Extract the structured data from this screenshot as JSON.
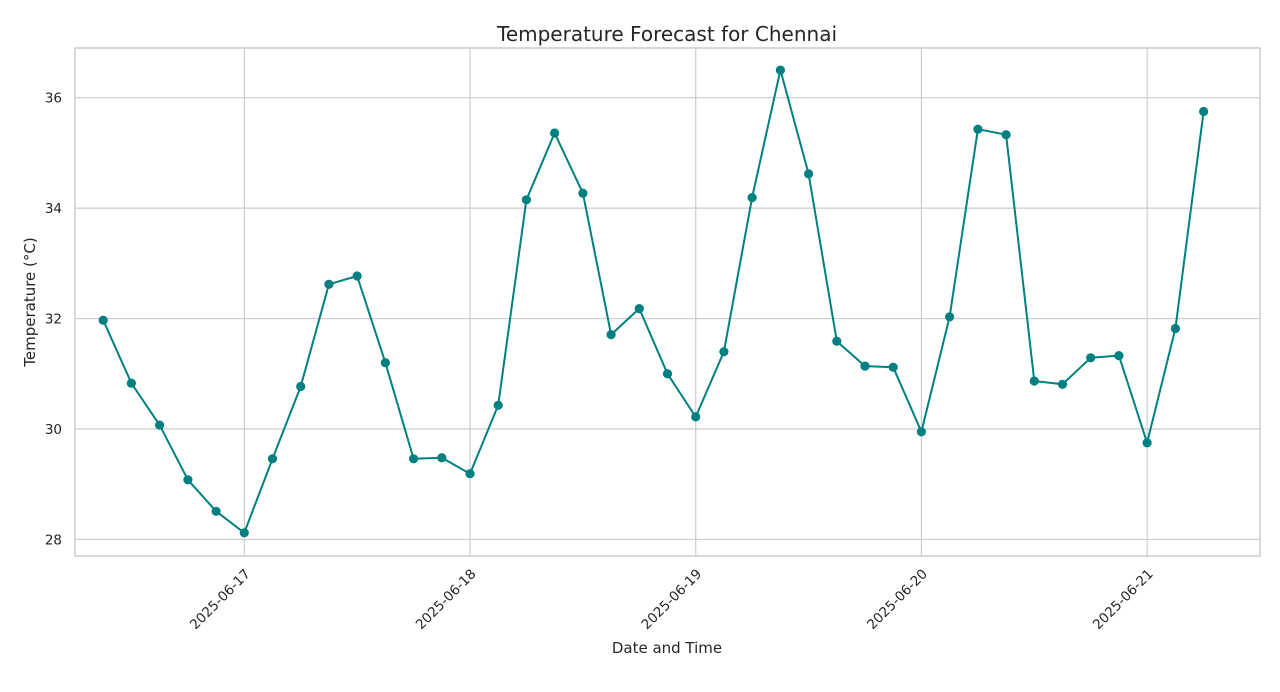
{
  "chart_data": {
    "type": "line",
    "title": "Temperature Forecast for Chennai",
    "xlabel": "Date and Time",
    "ylabel": "Temperature (°C)",
    "x_tick_labels": [
      "2025-06-17",
      "2025-06-18",
      "2025-06-19",
      "2025-06-20",
      "2025-06-21"
    ],
    "y_ticks": [
      28,
      30,
      32,
      34,
      36
    ],
    "xlim": [
      "2025-06-16 06:00",
      "2025-06-21 12:00"
    ],
    "ylim": [
      27.7,
      36.9
    ],
    "grid": true,
    "line_color": "#008080",
    "marker": "circle",
    "series": [
      {
        "x": [
          "2025-06-16 09:00",
          "2025-06-16 12:00",
          "2025-06-16 15:00",
          "2025-06-16 18:00",
          "2025-06-16 21:00",
          "2025-06-17 00:00",
          "2025-06-17 03:00",
          "2025-06-17 06:00",
          "2025-06-17 09:00",
          "2025-06-17 12:00",
          "2025-06-17 15:00",
          "2025-06-17 18:00",
          "2025-06-17 21:00",
          "2025-06-18 00:00",
          "2025-06-18 03:00",
          "2025-06-18 06:00",
          "2025-06-18 09:00",
          "2025-06-18 12:00",
          "2025-06-18 15:00",
          "2025-06-18 18:00",
          "2025-06-18 21:00",
          "2025-06-19 00:00",
          "2025-06-19 03:00",
          "2025-06-19 06:00",
          "2025-06-19 09:00",
          "2025-06-19 12:00",
          "2025-06-19 15:00",
          "2025-06-19 18:00",
          "2025-06-19 21:00",
          "2025-06-20 00:00",
          "2025-06-20 03:00",
          "2025-06-20 06:00",
          "2025-06-20 09:00",
          "2025-06-20 12:00",
          "2025-06-20 15:00",
          "2025-06-20 18:00",
          "2025-06-20 21:00",
          "2025-06-21 00:00",
          "2025-06-21 03:00",
          "2025-06-21 06:00"
        ],
        "y": [
          31.97,
          30.83,
          30.07,
          29.08,
          28.51,
          28.12,
          29.46,
          30.77,
          32.62,
          32.77,
          31.2,
          29.46,
          29.48,
          29.19,
          30.43,
          34.15,
          35.36,
          34.27,
          31.71,
          32.18,
          31.0,
          30.22,
          31.4,
          34.19,
          36.5,
          34.62,
          31.59,
          31.14,
          31.12,
          29.95,
          32.03,
          35.43,
          35.33,
          30.87,
          30.81,
          31.29,
          31.33,
          29.75,
          31.82,
          35.75
        ]
      }
    ]
  }
}
